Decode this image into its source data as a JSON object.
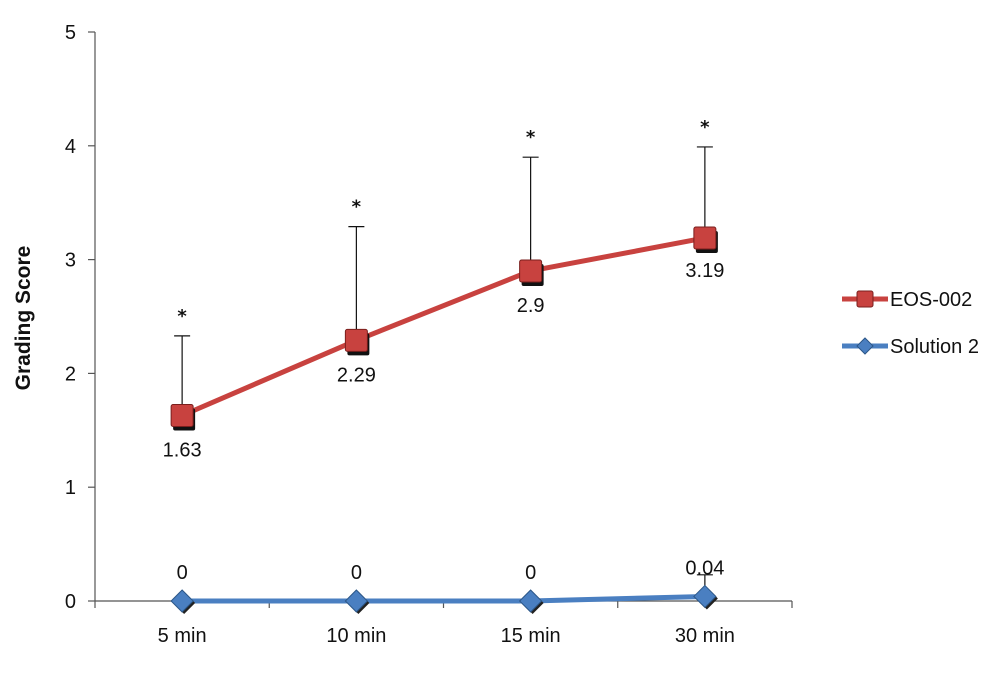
{
  "chart_data": {
    "type": "line",
    "title": "",
    "xlabel": "",
    "ylabel": "Grading Score",
    "categories": [
      "5 min",
      "10 min",
      "15 min",
      "30 min"
    ],
    "ylim": [
      0,
      5
    ],
    "yticks": [
      "0",
      "1",
      "2",
      "3",
      "4",
      "5"
    ],
    "grid": false,
    "legend_position": "right",
    "series": [
      {
        "name": "EOS-002",
        "color": "#c8423f",
        "marker": "square",
        "values": [
          1.63,
          2.29,
          2.9,
          3.19
        ],
        "labels": [
          "1.63",
          "2.29",
          "2.9",
          "3.19"
        ],
        "error_upper": [
          0.7,
          1.0,
          1.0,
          0.8
        ],
        "significance": [
          "*",
          "*",
          "*",
          "*"
        ]
      },
      {
        "name": "Solution 2",
        "color": "#4a7fc1",
        "marker": "diamond",
        "values": [
          0,
          0,
          0,
          0.04
        ],
        "labels": [
          "0",
          "0",
          "0",
          "0.04"
        ],
        "error_upper": [
          0,
          0,
          0,
          0.19
        ],
        "significance": [
          "",
          "",
          "",
          ""
        ]
      }
    ]
  }
}
